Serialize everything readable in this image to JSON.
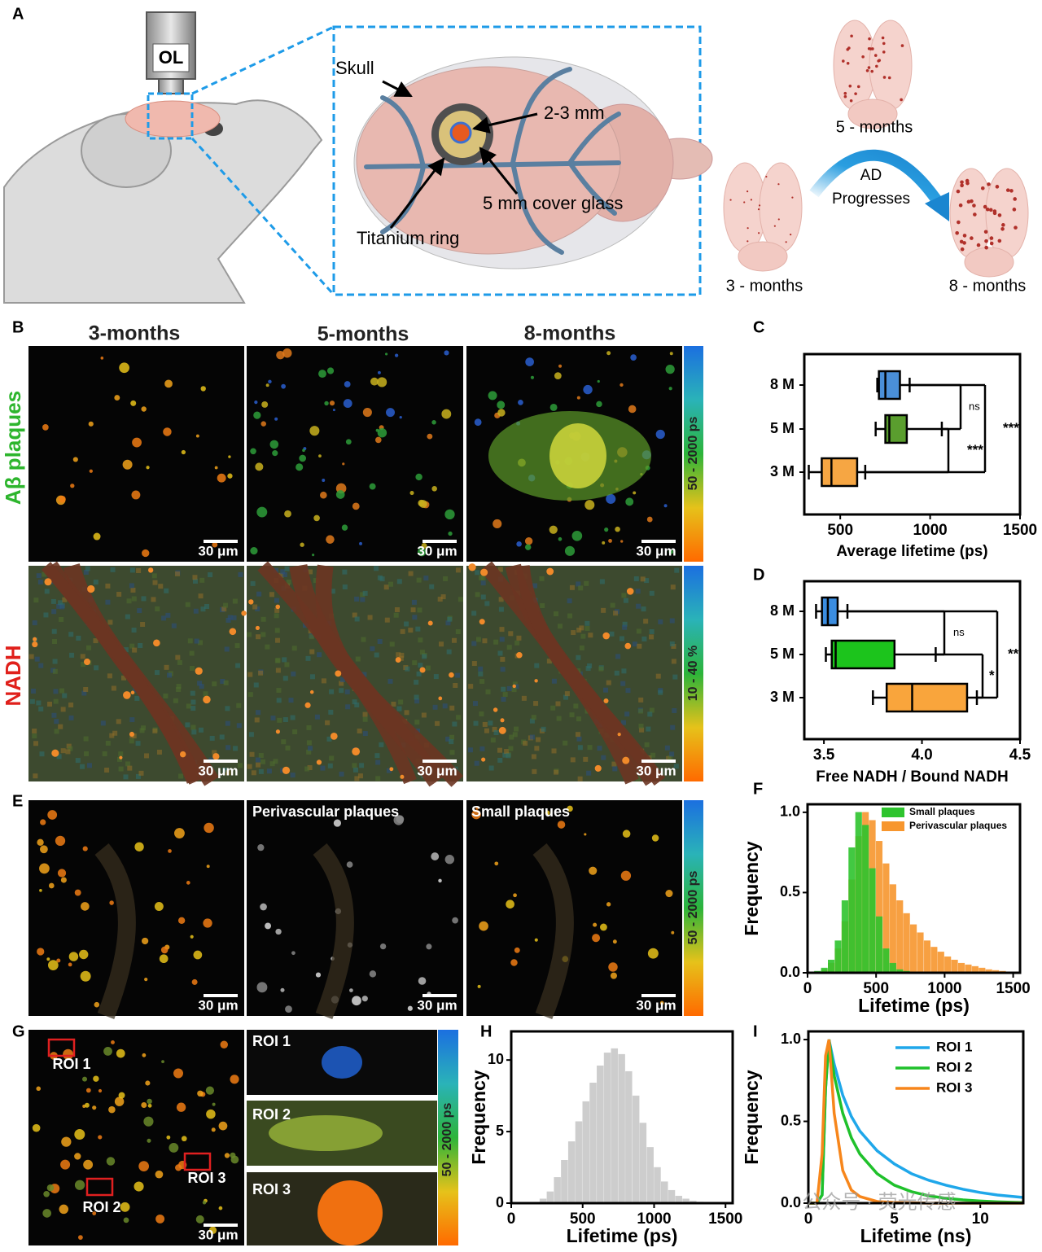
{
  "panel_letters": [
    "A",
    "B",
    "C",
    "D",
    "E",
    "F",
    "G",
    "H",
    "I"
  ],
  "panel_a": {
    "objective": "OL",
    "skull": "Skull",
    "window_size": "2-3 mm",
    "cover_glass": "5 mm cover glass",
    "ring": "Titanium ring",
    "stages": [
      "3 - months",
      "5 - months",
      "8 - months"
    ],
    "progression": [
      "AD",
      "Progresses"
    ]
  },
  "panel_b": {
    "columns": [
      "3-months",
      "5-months",
      "8-months"
    ],
    "rows": [
      "Aβ plaques",
      "NADH"
    ],
    "colorbars": [
      "50 - 2000 ps",
      "10 - 40 %"
    ],
    "scale_bar": "30 μm"
  },
  "panel_e": {
    "titles": [
      "Perivascular plaques",
      "Small plaques"
    ],
    "colorbar": "50 - 2000 ps"
  },
  "panel_g": {
    "rois": [
      "ROI 1",
      "ROI 2",
      "ROI 3"
    ],
    "colorbar": "50 - 2000 ps"
  },
  "watermark": "公众号 · 荧光传感",
  "chart_data": [
    {
      "type": "box",
      "categories": [
        "8 M",
        "5 M",
        "3 M"
      ],
      "boxes": {
        "min": [
          706,
          697,
          325
        ],
        "q1": [
          715,
          751,
          397
        ],
        "median": [
          751,
          773,
          451
        ],
        "q3": [
          832,
          870,
          594
        ],
        "max": [
          886,
          1065,
          639
        ]
      },
      "colors": [
        "#4a8fd8",
        "#5a9e2e",
        "#f6a643"
      ],
      "xlabel": "Average lifetime (ps)",
      "xlim": [
        300,
        1500
      ],
      "xticks": [
        500,
        1000,
        1500
      ],
      "significance": [
        "ns",
        "***",
        "***"
      ]
    },
    {
      "type": "box",
      "categories": [
        "8 M",
        "5 M",
        "3 M"
      ],
      "boxes": {
        "min": [
          3.46,
          3.51,
          3.75
        ],
        "q1": [
          3.49,
          3.54,
          3.82
        ],
        "median": [
          3.52,
          3.56,
          3.95
        ],
        "q3": [
          3.57,
          3.86,
          4.23
        ],
        "max": [
          3.62,
          4.07,
          4.28
        ]
      },
      "colors": [
        "#3b8de0",
        "#1cc41c",
        "#f9a53c"
      ],
      "xlabel": "Free NADH / Bound NADH",
      "xlim": [
        3.4,
        4.5
      ],
      "xticks": [
        3.5,
        {
          "value": 4,
          "label": "4.0"
        },
        4.5
      ],
      "significance": [
        "ns",
        "*",
        "**"
      ]
    },
    {
      "type": "histogram",
      "bins": [
        0,
        50,
        100,
        150,
        200,
        250,
        300,
        350,
        400,
        450,
        500,
        550,
        600,
        650,
        700,
        750,
        800,
        850,
        900,
        950,
        1000,
        1050,
        1100,
        1150,
        1200,
        1250,
        1300,
        1350,
        1400,
        1450,
        1500,
        1550
      ],
      "series": [
        {
          "name": "Small plaques",
          "color": "#2ec42e",
          "values": [
            0,
            0.01,
            0.03,
            0.08,
            0.2,
            0.45,
            0.78,
            1.0,
            0.92,
            0.65,
            0.35,
            0.15,
            0.06,
            0.02,
            0.01,
            0,
            0,
            0,
            0,
            0,
            0,
            0,
            0,
            0,
            0,
            0,
            0,
            0,
            0,
            0,
            0
          ]
        },
        {
          "name": "Perivascular plaques",
          "color": "#f7962e",
          "values": [
            0,
            0.005,
            0.02,
            0.06,
            0.15,
            0.32,
            0.58,
            0.85,
            1.0,
            0.95,
            0.82,
            0.68,
            0.55,
            0.45,
            0.37,
            0.3,
            0.25,
            0.2,
            0.16,
            0.13,
            0.1,
            0.08,
            0.06,
            0.05,
            0.04,
            0.03,
            0.02,
            0.015,
            0.01,
            0.005,
            0.003
          ]
        }
      ],
      "xlabel": "Lifetime (ps)",
      "ylabel": "Frequency",
      "xlim": [
        0,
        1550
      ],
      "xticks": [
        0,
        500,
        1000,
        1500
      ],
      "ylim": [
        0,
        1.05
      ],
      "yticks": [
        {
          "value": 0,
          "label": "0.0"
        },
        0.5,
        {
          "value": 1,
          "label": "1.0"
        }
      ],
      "legend": "upper right"
    },
    {
      "type": "histogram",
      "bins": [
        0,
        50,
        100,
        150,
        200,
        250,
        300,
        350,
        400,
        450,
        500,
        550,
        600,
        650,
        700,
        750,
        800,
        850,
        900,
        950,
        1000,
        1050,
        1100,
        1150,
        1200,
        1250,
        1300,
        1350,
        1400,
        1450,
        1500,
        1550
      ],
      "color": "#c8c8c8",
      "values": [
        0,
        0,
        0,
        0.05,
        0.3,
        0.8,
        1.8,
        3.0,
        4.3,
        5.7,
        7.1,
        8.4,
        9.6,
        10.5,
        10.8,
        10.4,
        9.2,
        7.5,
        5.6,
        3.9,
        2.5,
        1.5,
        0.9,
        0.5,
        0.3,
        0.15,
        0.08,
        0.04,
        0.02,
        0.01,
        0
      ],
      "xlabel": "Lifetime (ps)",
      "ylabel": "Frequency",
      "xlim": [
        0,
        1550
      ],
      "xticks": [
        0,
        500,
        1000,
        1500
      ],
      "ylim": [
        0,
        12
      ],
      "yticks": [
        0,
        5,
        10
      ]
    },
    {
      "type": "line",
      "x": [
        0,
        0.5,
        0.8,
        1.0,
        1.2,
        1.5,
        2,
        2.5,
        3,
        4,
        5,
        6,
        7,
        8,
        9,
        10,
        11,
        12,
        12.5
      ],
      "series": [
        {
          "name": "ROI 1",
          "color": "#1fa7ea",
          "values": [
            0,
            0,
            0.05,
            0.7,
            1.0,
            0.85,
            0.66,
            0.53,
            0.44,
            0.32,
            0.24,
            0.18,
            0.14,
            0.11,
            0.085,
            0.065,
            0.05,
            0.04,
            0.035
          ]
        },
        {
          "name": "ROI 2",
          "color": "#1fc12b",
          "values": [
            0,
            0,
            0.05,
            0.7,
            1.0,
            0.78,
            0.55,
            0.4,
            0.3,
            0.18,
            0.11,
            0.07,
            0.045,
            0.03,
            0.02,
            0.013,
            0.008,
            0.005,
            0.004
          ]
        },
        {
          "name": "ROI 3",
          "color": "#f7861b",
          "values": [
            0,
            0,
            0.3,
            0.9,
            1.0,
            0.55,
            0.2,
            0.08,
            0.04,
            0.01,
            0.004,
            0.002,
            0,
            0,
            0,
            0,
            0,
            0,
            0
          ]
        }
      ],
      "xlabel": "Lifetime (ns)",
      "ylabel": "Frequency",
      "xlim": [
        0,
        12.5
      ],
      "xticks": [
        0,
        5,
        10
      ],
      "ylim": [
        0,
        1.05
      ],
      "yticks": [
        {
          "value": 0,
          "label": "0.0"
        },
        0.5,
        {
          "value": 1,
          "label": "1.0"
        }
      ],
      "legend": "upper right"
    }
  ]
}
